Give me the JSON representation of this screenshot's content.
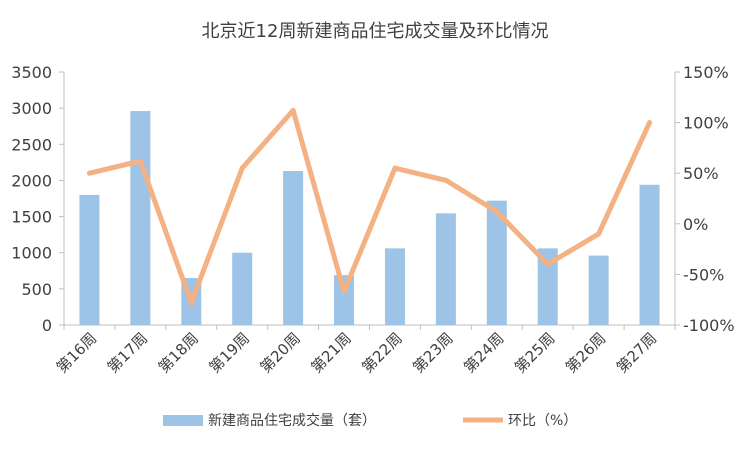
{
  "chart_data": {
    "type": "bar+line",
    "title": "北京近12周新建商品住宅成交量及环比情况",
    "categories": [
      "第16周",
      "第17周",
      "第18周",
      "第19周",
      "第20周",
      "第21周",
      "第22周",
      "第23周",
      "第24周",
      "第25周",
      "第26周",
      "第27周"
    ],
    "series": [
      {
        "name": "新建商品住宅成交量（套）",
        "type": "bar",
        "axis": "left",
        "color": "#9DC3E6",
        "values": [
          1800,
          2960,
          650,
          1000,
          2130,
          690,
          1060,
          1545,
          1720,
          1060,
          960,
          1940
        ]
      },
      {
        "name": "环比（%）",
        "type": "line",
        "axis": "right",
        "color": "#F4B183",
        "values": [
          50,
          62,
          -78,
          55,
          112,
          -67,
          55,
          43,
          12,
          -40,
          -10,
          100
        ]
      }
    ],
    "y_left": {
      "min": 0,
      "max": 3500,
      "ticks": [
        "0",
        "500",
        "1000",
        "1500",
        "2000",
        "2500",
        "3000",
        "3500"
      ]
    },
    "y_right": {
      "min": -100,
      "max": 150,
      "ticks": [
        "-100%",
        "-50%",
        "0%",
        "50%",
        "100%",
        "150%"
      ]
    },
    "grid": false,
    "legend_position": "bottom"
  }
}
